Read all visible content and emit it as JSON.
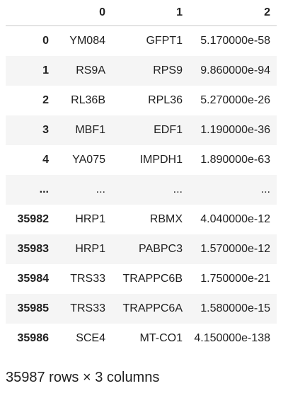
{
  "table": {
    "columns": [
      "0",
      "1",
      "2"
    ],
    "rows": [
      {
        "index": "0",
        "cells": [
          "YM084",
          "GFPT1",
          "5.170000e-58"
        ]
      },
      {
        "index": "1",
        "cells": [
          "RS9A",
          "RPS9",
          "9.860000e-94"
        ]
      },
      {
        "index": "2",
        "cells": [
          "RL36B",
          "RPL36",
          "5.270000e-26"
        ]
      },
      {
        "index": "3",
        "cells": [
          "MBF1",
          "EDF1",
          "1.190000e-36"
        ]
      },
      {
        "index": "4",
        "cells": [
          "YA075",
          "IMPDH1",
          "1.890000e-63"
        ]
      },
      {
        "index": "...",
        "cells": [
          "...",
          "...",
          "..."
        ]
      },
      {
        "index": "35982",
        "cells": [
          "HRP1",
          "RBMX",
          "4.040000e-12"
        ]
      },
      {
        "index": "35983",
        "cells": [
          "HRP1",
          "PABPC3",
          "1.570000e-12"
        ]
      },
      {
        "index": "35984",
        "cells": [
          "TRS33",
          "TRAPPC6B",
          "1.750000e-21"
        ]
      },
      {
        "index": "35985",
        "cells": [
          "TRS33",
          "TRAPPC6A",
          "1.580000e-15"
        ]
      },
      {
        "index": "35986",
        "cells": [
          "SCE4",
          "MT-CO1",
          "4.150000e-138"
        ]
      }
    ]
  },
  "footer": {
    "summary": "35987 rows × 3 columns"
  },
  "colors": {
    "text": "#212121",
    "stripe": "#f5f5f5",
    "header_border": "#c8c8c8"
  }
}
